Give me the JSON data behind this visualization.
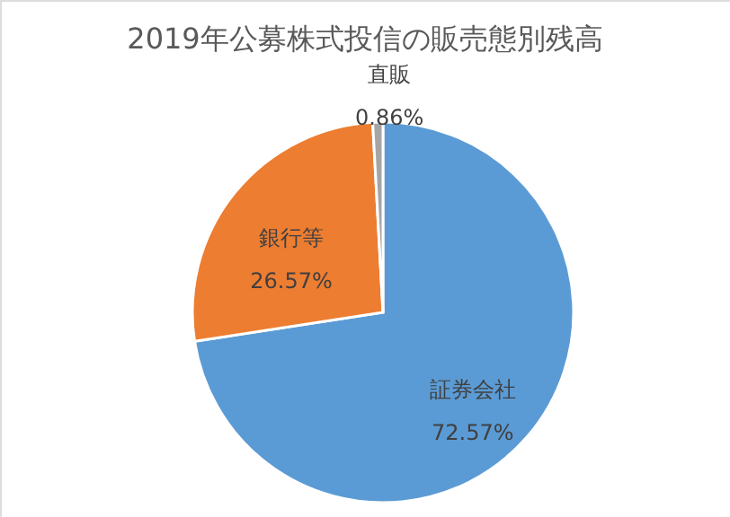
{
  "chart_data": {
    "type": "pie",
    "title": "2019年公募株式投信の販売態別残高",
    "categories": [
      "証券会社",
      "銀行等",
      "直販"
    ],
    "values": [
      72.57,
      26.57,
      0.86
    ],
    "colors": [
      "#5b9bd5",
      "#ed7d31",
      "#a5a5a5"
    ],
    "value_labels": [
      "72.57%",
      "26.57%",
      "0.86%"
    ]
  }
}
